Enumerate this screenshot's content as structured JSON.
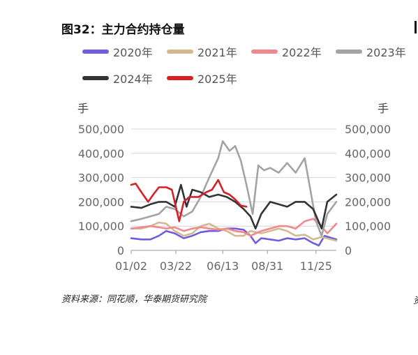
{
  "page": {
    "title": "图32：主力合约持仓量",
    "source": "资料来源：同花顺，华泰期货研究院",
    "edge_source": "资"
  },
  "chart_data": {
    "type": "line",
    "title": "图32：主力合约持仓量",
    "y_unit_left": "手",
    "y_unit_right": "手",
    "ylim": [
      0,
      500000
    ],
    "y_ticks": [
      0,
      100000,
      200000,
      300000,
      400000,
      500000
    ],
    "y_tick_labels": [
      "0",
      "100,000",
      "200,000",
      "300,000",
      "400,000",
      "500,000"
    ],
    "x_range": [
      "01/02",
      "12/31"
    ],
    "x_tick_labels": [
      "01/02",
      "03/22",
      "06/13",
      "08/31",
      "11/25"
    ],
    "legend_position": "top",
    "grid": "horizontal",
    "series": [
      {
        "name": "2020年",
        "color": "#6f5de0",
        "points": [
          [
            "01/02",
            50000
          ],
          [
            "01/20",
            45000
          ],
          [
            "02/05",
            45000
          ],
          [
            "02/20",
            60000
          ],
          [
            "03/05",
            80000
          ],
          [
            "03/20",
            70000
          ],
          [
            "04/05",
            50000
          ],
          [
            "04/20",
            60000
          ],
          [
            "05/05",
            75000
          ],
          [
            "05/20",
            80000
          ],
          [
            "06/05",
            80000
          ],
          [
            "06/20",
            90000
          ],
          [
            "07/05",
            90000
          ],
          [
            "07/20",
            85000
          ],
          [
            "08/01",
            60000
          ],
          [
            "08/10",
            30000
          ],
          [
            "08/20",
            50000
          ],
          [
            "09/05",
            45000
          ],
          [
            "09/20",
            40000
          ],
          [
            "10/05",
            50000
          ],
          [
            "10/20",
            45000
          ],
          [
            "11/05",
            50000
          ],
          [
            "11/20",
            30000
          ],
          [
            "11/30",
            20000
          ],
          [
            "12/10",
            60000
          ],
          [
            "12/31",
            45000
          ]
        ]
      },
      {
        "name": "2021年",
        "color": "#d4b98f",
        "points": [
          [
            "01/02",
            90000
          ],
          [
            "01/20",
            90000
          ],
          [
            "02/05",
            100000
          ],
          [
            "02/20",
            115000
          ],
          [
            "03/05",
            110000
          ],
          [
            "03/20",
            80000
          ],
          [
            "04/05",
            60000
          ],
          [
            "04/20",
            70000
          ],
          [
            "05/05",
            100000
          ],
          [
            "05/20",
            110000
          ],
          [
            "06/05",
            90000
          ],
          [
            "06/20",
            80000
          ],
          [
            "07/05",
            60000
          ],
          [
            "07/20",
            60000
          ],
          [
            "08/01",
            80000
          ],
          [
            "08/20",
            70000
          ],
          [
            "09/05",
            80000
          ],
          [
            "09/20",
            90000
          ],
          [
            "10/05",
            80000
          ],
          [
            "10/20",
            60000
          ],
          [
            "11/05",
            65000
          ],
          [
            "11/20",
            45000
          ],
          [
            "12/05",
            55000
          ],
          [
            "12/31",
            40000
          ]
        ]
      },
      {
        "name": "2022年",
        "color": "#f0898d",
        "points": [
          [
            "01/02",
            90000
          ],
          [
            "01/20",
            95000
          ],
          [
            "02/05",
            100000
          ],
          [
            "02/20",
            95000
          ],
          [
            "03/05",
            90000
          ],
          [
            "03/20",
            95000
          ],
          [
            "04/05",
            80000
          ],
          [
            "04/20",
            90000
          ],
          [
            "05/05",
            95000
          ],
          [
            "05/20",
            90000
          ],
          [
            "06/05",
            85000
          ],
          [
            "06/20",
            90000
          ],
          [
            "07/05",
            80000
          ],
          [
            "07/20",
            75000
          ],
          [
            "08/01",
            60000
          ],
          [
            "08/20",
            80000
          ],
          [
            "09/05",
            90000
          ],
          [
            "09/20",
            100000
          ],
          [
            "10/05",
            100000
          ],
          [
            "10/20",
            90000
          ],
          [
            "11/05",
            120000
          ],
          [
            "11/20",
            130000
          ],
          [
            "12/01",
            110000
          ],
          [
            "12/15",
            70000
          ],
          [
            "12/31",
            110000
          ]
        ]
      },
      {
        "name": "2023年",
        "color": "#a3a3a3",
        "points": [
          [
            "01/02",
            120000
          ],
          [
            "01/20",
            130000
          ],
          [
            "02/05",
            140000
          ],
          [
            "02/20",
            150000
          ],
          [
            "03/05",
            180000
          ],
          [
            "03/20",
            170000
          ],
          [
            "04/05",
            140000
          ],
          [
            "04/20",
            160000
          ],
          [
            "05/05",
            220000
          ],
          [
            "05/20",
            300000
          ],
          [
            "06/05",
            380000
          ],
          [
            "06/13",
            450000
          ],
          [
            "06/25",
            410000
          ],
          [
            "07/05",
            430000
          ],
          [
            "07/15",
            370000
          ],
          [
            "07/25",
            270000
          ],
          [
            "08/05",
            150000
          ],
          [
            "08/15",
            350000
          ],
          [
            "08/25",
            330000
          ],
          [
            "09/05",
            340000
          ],
          [
            "09/20",
            320000
          ],
          [
            "10/05",
            360000
          ],
          [
            "10/20",
            320000
          ],
          [
            "11/05",
            380000
          ],
          [
            "11/15",
            250000
          ],
          [
            "11/25",
            120000
          ],
          [
            "12/05",
            60000
          ],
          [
            "12/15",
            150000
          ],
          [
            "12/31",
            200000
          ]
        ]
      },
      {
        "name": "2024年",
        "color": "#333333",
        "points": [
          [
            "01/02",
            180000
          ],
          [
            "01/20",
            175000
          ],
          [
            "02/05",
            190000
          ],
          [
            "02/20",
            200000
          ],
          [
            "03/05",
            200000
          ],
          [
            "03/20",
            180000
          ],
          [
            "03/31",
            270000
          ],
          [
            "04/10",
            180000
          ],
          [
            "04/20",
            250000
          ],
          [
            "05/05",
            240000
          ],
          [
            "05/20",
            220000
          ],
          [
            "06/05",
            230000
          ],
          [
            "06/20",
            220000
          ],
          [
            "07/05",
            200000
          ],
          [
            "07/20",
            170000
          ],
          [
            "08/01",
            140000
          ],
          [
            "08/10",
            90000
          ],
          [
            "08/20",
            150000
          ],
          [
            "09/05",
            200000
          ],
          [
            "09/20",
            190000
          ],
          [
            "10/05",
            180000
          ],
          [
            "10/20",
            200000
          ],
          [
            "11/05",
            200000
          ],
          [
            "11/20",
            170000
          ],
          [
            "12/05",
            90000
          ],
          [
            "12/15",
            200000
          ],
          [
            "12/31",
            230000
          ]
        ]
      },
      {
        "name": "2025年",
        "color": "#d81e27",
        "points": [
          [
            "01/02",
            270000
          ],
          [
            "01/10",
            275000
          ],
          [
            "01/20",
            240000
          ],
          [
            "02/01",
            200000
          ],
          [
            "02/10",
            230000
          ],
          [
            "02/20",
            260000
          ],
          [
            "03/05",
            260000
          ],
          [
            "03/15",
            250000
          ],
          [
            "03/28",
            120000
          ],
          [
            "04/05",
            200000
          ],
          [
            "04/15",
            220000
          ],
          [
            "05/01",
            220000
          ],
          [
            "05/15",
            240000
          ],
          [
            "05/25",
            250000
          ],
          [
            "06/05",
            290000
          ],
          [
            "06/15",
            240000
          ],
          [
            "06/25",
            230000
          ],
          [
            "07/05",
            210000
          ],
          [
            "07/15",
            185000
          ],
          [
            "07/25",
            180000
          ]
        ]
      }
    ]
  }
}
